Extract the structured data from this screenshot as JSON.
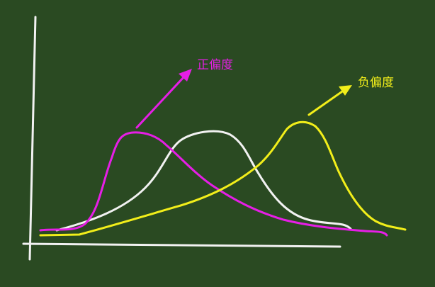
{
  "labels": {
    "positive_skew": "正偏度",
    "negative_skew": "负偏度"
  },
  "colors": {
    "board": "#2a4a22",
    "chalk_white": "#f2f2f2",
    "positive_skew": "#e61ee6",
    "negative_skew": "#f2ee1a"
  }
}
